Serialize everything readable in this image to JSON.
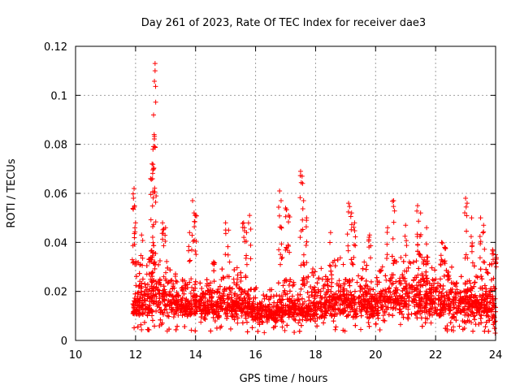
{
  "chart_data": {
    "type": "scatter",
    "title": "Day 261 of 2023, Rate Of TEC Index for receiver dae3",
    "xlabel": "GPS time / hours",
    "ylabel": "ROTI / TECUs",
    "xlim": [
      10,
      24
    ],
    "ylim": [
      0,
      0.12
    ],
    "xticks": [
      "10",
      "12",
      "14",
      "16",
      "18",
      "20",
      "22",
      "24"
    ],
    "yticks": [
      "0",
      "0.02",
      "0.04",
      "0.06",
      "0.08",
      "0.1",
      "0.12"
    ],
    "grid": true,
    "marker": "+",
    "color": "#ff0000",
    "series": [
      {
        "name": "ROTI",
        "profile": [
          [
            11.9,
            0.012,
            0.01,
            0.02
          ],
          [
            12.0,
            0.015,
            0.01,
            0.035
          ],
          [
            12.2,
            0.016,
            0.01,
            0.03
          ],
          [
            12.4,
            0.018,
            0.01,
            0.032
          ],
          [
            12.6,
            0.022,
            0.012,
            0.04
          ],
          [
            12.8,
            0.018,
            0.01,
            0.034
          ],
          [
            13.0,
            0.016,
            0.009,
            0.03
          ],
          [
            13.5,
            0.015,
            0.009,
            0.028
          ],
          [
            14.0,
            0.014,
            0.009,
            0.026
          ],
          [
            14.5,
            0.015,
            0.009,
            0.03
          ],
          [
            15.0,
            0.016,
            0.009,
            0.03
          ],
          [
            15.5,
            0.015,
            0.009,
            0.03
          ],
          [
            16.0,
            0.012,
            0.008,
            0.022
          ],
          [
            16.5,
            0.011,
            0.007,
            0.022
          ],
          [
            17.0,
            0.013,
            0.008,
            0.026
          ],
          [
            17.5,
            0.012,
            0.008,
            0.026
          ],
          [
            18.0,
            0.014,
            0.008,
            0.03
          ],
          [
            18.5,
            0.016,
            0.009,
            0.034
          ],
          [
            19.0,
            0.017,
            0.009,
            0.034
          ],
          [
            19.5,
            0.016,
            0.009,
            0.032
          ],
          [
            20.0,
            0.016,
            0.009,
            0.034
          ],
          [
            20.5,
            0.017,
            0.009,
            0.036
          ],
          [
            21.0,
            0.018,
            0.009,
            0.036
          ],
          [
            21.5,
            0.018,
            0.009,
            0.038
          ],
          [
            22.0,
            0.017,
            0.009,
            0.034
          ],
          [
            22.5,
            0.016,
            0.009,
            0.032
          ],
          [
            23.0,
            0.016,
            0.009,
            0.034
          ],
          [
            23.5,
            0.015,
            0.008,
            0.03
          ],
          [
            24.0,
            0.014,
            0.005,
            0.032
          ]
        ],
        "peaks": [
          [
            12.65,
            0.113
          ],
          [
            12.65,
            0.11
          ],
          [
            12.6,
            0.092
          ],
          [
            12.62,
            0.084
          ],
          [
            12.58,
            0.078
          ],
          [
            12.55,
            0.072
          ],
          [
            12.5,
            0.066
          ],
          [
            12.6,
            0.07
          ],
          [
            11.95,
            0.062
          ],
          [
            11.93,
            0.058
          ],
          [
            12.0,
            0.048
          ],
          [
            12.2,
            0.043
          ],
          [
            12.9,
            0.048
          ],
          [
            13.0,
            0.046
          ],
          [
            13.8,
            0.044
          ],
          [
            13.9,
            0.057
          ],
          [
            13.95,
            0.052
          ],
          [
            14.0,
            0.051
          ],
          [
            14.6,
            0.032
          ],
          [
            15.0,
            0.048
          ],
          [
            15.1,
            0.045
          ],
          [
            15.6,
            0.048
          ],
          [
            15.7,
            0.044
          ],
          [
            15.8,
            0.051
          ],
          [
            16.8,
            0.061
          ],
          [
            16.85,
            0.057
          ],
          [
            17.0,
            0.054
          ],
          [
            17.1,
            0.051
          ],
          [
            17.5,
            0.069
          ],
          [
            17.55,
            0.067
          ],
          [
            17.6,
            0.057
          ],
          [
            17.7,
            0.05
          ],
          [
            18.5,
            0.044
          ],
          [
            19.1,
            0.056
          ],
          [
            19.2,
            0.052
          ],
          [
            19.3,
            0.048
          ],
          [
            19.8,
            0.043
          ],
          [
            20.4,
            0.046
          ],
          [
            20.6,
            0.057
          ],
          [
            21.0,
            0.047
          ],
          [
            21.4,
            0.055
          ],
          [
            21.5,
            0.052
          ],
          [
            21.7,
            0.046
          ],
          [
            22.2,
            0.04
          ],
          [
            22.3,
            0.038
          ],
          [
            23.0,
            0.058
          ],
          [
            23.05,
            0.056
          ],
          [
            23.2,
            0.05
          ],
          [
            23.5,
            0.05
          ],
          [
            23.6,
            0.047
          ],
          [
            23.9,
            0.037
          ],
          [
            24.0,
            0.035
          ]
        ]
      }
    ]
  }
}
